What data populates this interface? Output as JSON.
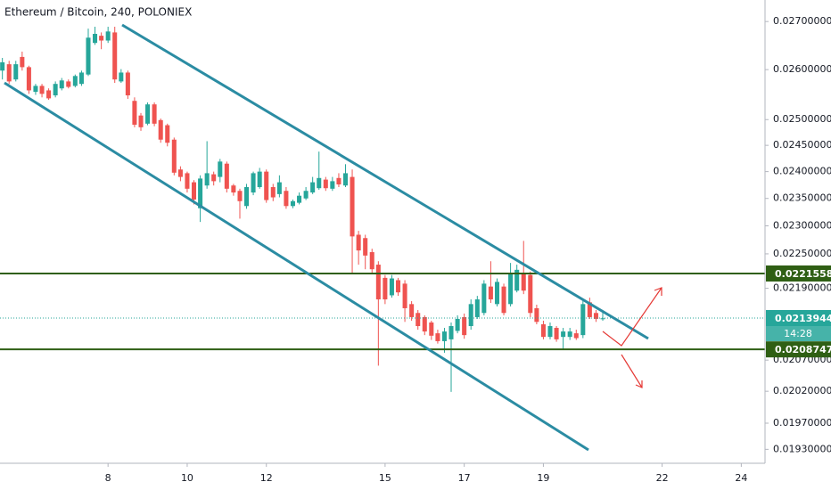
{
  "chart_data": {
    "type": "candlestick",
    "title": "Ethereum / Bitcoin, 240, POLONIEX",
    "x": [
      5.33,
      5.5,
      5.67,
      5.83,
      6,
      6.17,
      6.33,
      6.5,
      6.67,
      6.83,
      7,
      7.17,
      7.33,
      7.5,
      7.67,
      7.83,
      8,
      8.17,
      8.33,
      8.5,
      8.67,
      8.83,
      9,
      9.17,
      9.33,
      9.5,
      9.67,
      9.83,
      10,
      10.17,
      10.33,
      10.5,
      10.67,
      10.83,
      11,
      11.17,
      11.33,
      11.5,
      11.67,
      11.83,
      12,
      12.17,
      12.33,
      12.5,
      12.67,
      12.83,
      13,
      13.17,
      13.33,
      13.5,
      13.67,
      13.83,
      14,
      14.17,
      14.33,
      14.5,
      14.67,
      14.83,
      15,
      15.17,
      15.33,
      15.5,
      15.67,
      15.83,
      16,
      16.17,
      16.33,
      16.5,
      16.67,
      16.83,
      17,
      17.17,
      17.33,
      17.5,
      17.67,
      17.83,
      18,
      18.17,
      18.33,
      18.5,
      18.67,
      18.83,
      19,
      19.17,
      19.33,
      19.5,
      19.67,
      19.83,
      20,
      20.17,
      20.33,
      20.5
    ],
    "open": [
      0.02598,
      0.02611,
      0.0258,
      0.02626,
      0.02605,
      0.02555,
      0.02567,
      0.02558,
      0.02548,
      0.02562,
      0.02576,
      0.02567,
      0.02571,
      0.0259,
      0.02655,
      0.0267,
      0.0266,
      0.02677,
      0.02576,
      0.02594,
      0.02537,
      0.02508,
      0.02492,
      0.0253,
      0.02499,
      0.02489,
      0.02461,
      0.02404,
      0.02397,
      0.0238,
      0.02332,
      0.02374,
      0.02395,
      0.0239,
      0.02415,
      0.02374,
      0.02364,
      0.02336,
      0.02361,
      0.02371,
      0.024,
      0.02371,
      0.02358,
      0.02364,
      0.02336,
      0.02342,
      0.0235,
      0.02361,
      0.02369,
      0.02385,
      0.02368,
      0.02388,
      0.02374,
      0.0239,
      0.02284,
      0.02278,
      0.02253,
      0.02231,
      0.02208,
      0.02178,
      0.02204,
      0.02198,
      0.02163,
      0.02148,
      0.02141,
      0.02132,
      0.02114,
      0.02101,
      0.02104,
      0.02118,
      0.02141,
      0.02126,
      0.02141,
      0.02148,
      0.02193,
      0.02163,
      0.02193,
      0.02163,
      0.02186,
      0.02216,
      0.02213,
      0.02156,
      0.02129,
      0.02108,
      0.02123,
      0.02108,
      0.02108,
      0.02114,
      0.02111,
      0.02166,
      0.02148,
      0.02138
    ],
    "high": [
      0.02624,
      0.02618,
      0.02618,
      0.02637,
      0.02608,
      0.02571,
      0.02571,
      0.02562,
      0.02576,
      0.02583,
      0.0258,
      0.0259,
      0.02598,
      0.02685,
      0.02689,
      0.02677,
      0.02689,
      0.02689,
      0.02601,
      0.02598,
      0.02544,
      0.02513,
      0.02534,
      0.02534,
      0.02502,
      0.02492,
      0.02465,
      0.0241,
      0.024,
      0.02384,
      0.02393,
      0.02458,
      0.024,
      0.02424,
      0.02419,
      0.02377,
      0.02368,
      0.02377,
      0.024,
      0.02407,
      0.02404,
      0.02377,
      0.02393,
      0.02371,
      0.02348,
      0.02361,
      0.02371,
      0.0239,
      0.02438,
      0.0239,
      0.0239,
      0.02397,
      0.02414,
      0.02404,
      0.02291,
      0.02284,
      0.02259,
      0.02237,
      0.02213,
      0.02213,
      0.02208,
      0.02204,
      0.02168,
      0.02153,
      0.02144,
      0.02135,
      0.0212,
      0.02123,
      0.02132,
      0.02144,
      0.02147,
      0.02171,
      0.02177,
      0.02204,
      0.02237,
      0.02207,
      0.02198,
      0.02234,
      0.02231,
      0.02273,
      0.02219,
      0.02162,
      0.02135,
      0.02132,
      0.02126,
      0.02123,
      0.02123,
      0.0212,
      0.02171,
      0.02174,
      0.02153,
      0.02153
    ],
    "low": [
      0.0258,
      0.02571,
      0.02576,
      0.02598,
      0.02551,
      0.02549,
      0.02544,
      0.02539,
      0.02544,
      0.02558,
      0.02562,
      0.02564,
      0.02567,
      0.02587,
      0.02651,
      0.02642,
      0.02655,
      0.02573,
      0.02573,
      0.02541,
      0.02485,
      0.02478,
      0.02489,
      0.02487,
      0.02455,
      0.02448,
      0.02393,
      0.02382,
      0.02361,
      0.02339,
      0.02307,
      0.02368,
      0.02374,
      0.0238,
      0.02361,
      0.02355,
      0.02313,
      0.02331,
      0.02356,
      0.02368,
      0.02342,
      0.02345,
      0.02352,
      0.02331,
      0.02332,
      0.02339,
      0.02347,
      0.02358,
      0.02366,
      0.02364,
      0.02364,
      0.02371,
      0.02371,
      0.02216,
      0.02231,
      0.02223,
      0.02216,
      0.02061,
      0.02163,
      0.02174,
      0.02177,
      0.02133,
      0.02135,
      0.0212,
      0.02111,
      0.02103,
      0.02097,
      0.02082,
      0.02019,
      0.02114,
      0.02105,
      0.0212,
      0.02138,
      0.02144,
      0.02165,
      0.02159,
      0.02144,
      0.02159,
      0.02183,
      0.0218,
      0.02141,
      0.02129,
      0.02104,
      0.02104,
      0.021,
      0.02088,
      0.02103,
      0.02103,
      0.02106,
      0.02138,
      0.02133,
      0.02135
    ],
    "close": [
      0.02615,
      0.02576,
      0.02611,
      0.02605,
      0.02558,
      0.02567,
      0.02551,
      0.02542,
      0.02571,
      0.02578,
      0.02565,
      0.02587,
      0.02594,
      0.02666,
      0.02674,
      0.0266,
      0.02679,
      0.0258,
      0.02594,
      0.02548,
      0.0249,
      0.02485,
      0.0253,
      0.02492,
      0.02461,
      0.02455,
      0.02398,
      0.0239,
      0.02368,
      0.02348,
      0.02387,
      0.02397,
      0.02382,
      0.02419,
      0.02368,
      0.02361,
      0.02345,
      0.02371,
      0.02397,
      0.024,
      0.02347,
      0.02352,
      0.0238,
      0.02336,
      0.02345,
      0.02355,
      0.02364,
      0.0238,
      0.02388,
      0.02369,
      0.02382,
      0.02376,
      0.02397,
      0.02281,
      0.02256,
      0.02247,
      0.02223,
      0.02171,
      0.02171,
      0.02207,
      0.02183,
      0.02156,
      0.02141,
      0.02126,
      0.02117,
      0.0211,
      0.02101,
      0.02117,
      0.02126,
      0.02138,
      0.02111,
      0.02163,
      0.02171,
      0.02198,
      0.02171,
      0.02201,
      0.02148,
      0.02216,
      0.02222,
      0.02186,
      0.02148,
      0.02133,
      0.02108,
      0.02126,
      0.02104,
      0.02117,
      0.02117,
      0.02106,
      0.02163,
      0.02141,
      0.02138,
      0.02139
    ],
    "up_color": "#26a69a",
    "down_color": "#ef5350",
    "xlim": [
      5.27,
      24.6
    ],
    "xticks": [
      8,
      10,
      12,
      15,
      17,
      19,
      22,
      24
    ],
    "ylim": [
      0.01909,
      0.02746
    ],
    "log_scale": true,
    "yticks": [
      {
        "value": 0.027,
        "label": "0.02700000"
      },
      {
        "value": 0.026,
        "label": "0.02600000"
      },
      {
        "value": 0.025,
        "label": "0.02500000"
      },
      {
        "value": 0.0245,
        "label": "0.02450000"
      },
      {
        "value": 0.024,
        "label": "0.02400000"
      },
      {
        "value": 0.0235,
        "label": "0.02350000"
      },
      {
        "value": 0.023,
        "label": "0.02300000"
      },
      {
        "value": 0.0225,
        "label": "0.02250000"
      },
      {
        "value": 0.0219,
        "label": "0.02190000"
      },
      {
        "value": 0.0207,
        "label": "0.02070000"
      },
      {
        "value": 0.0202,
        "label": "0.02020000"
      },
      {
        "value": 0.0197,
        "label": "0.01970000"
      },
      {
        "value": 0.0193,
        "label": "0.01930000"
      }
    ],
    "grid": false,
    "levels": [
      {
        "value": 0.02215586,
        "color": "#2f5f14"
      },
      {
        "value": 0.02087478,
        "color": "#2f5f14"
      }
    ],
    "current_price": {
      "value": 0.02139443,
      "color": "#26a69a"
    },
    "countdown": "14:28"
  }
}
